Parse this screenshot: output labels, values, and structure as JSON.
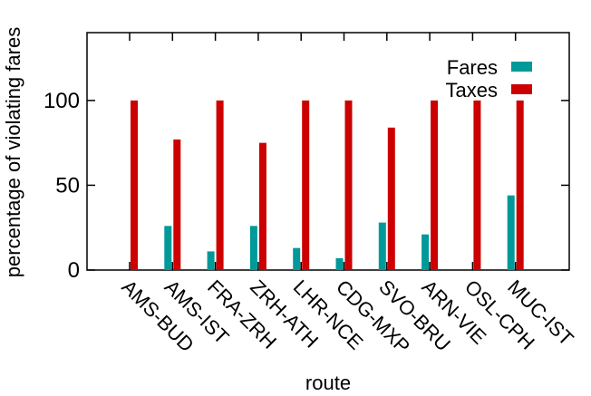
{
  "chart_data": {
    "type": "bar",
    "xlabel": "route",
    "ylabel": "percentage of violating fares",
    "categories": [
      "AMS-BUD",
      "AMS-IST",
      "FRA-ZRH",
      "ZRH-ATH",
      "LHR-NCE",
      "CDG-MXP",
      "SVO-BRU",
      "ARN-VIE",
      "OSL-CPH",
      "MUC-IST"
    ],
    "series": [
      {
        "name": "Fares",
        "color": "#009999",
        "values": [
          0,
          26,
          11,
          26,
          13,
          7,
          28,
          21,
          0,
          44
        ]
      },
      {
        "name": "Taxes",
        "color": "#cc0000",
        "values": [
          100,
          77,
          100,
          75,
          100,
          100,
          84,
          100,
          100,
          100
        ]
      }
    ],
    "ylim": [
      0,
      140
    ],
    "yticks": [
      0,
      50,
      100
    ],
    "grid": false,
    "legend_position": "top-right"
  }
}
